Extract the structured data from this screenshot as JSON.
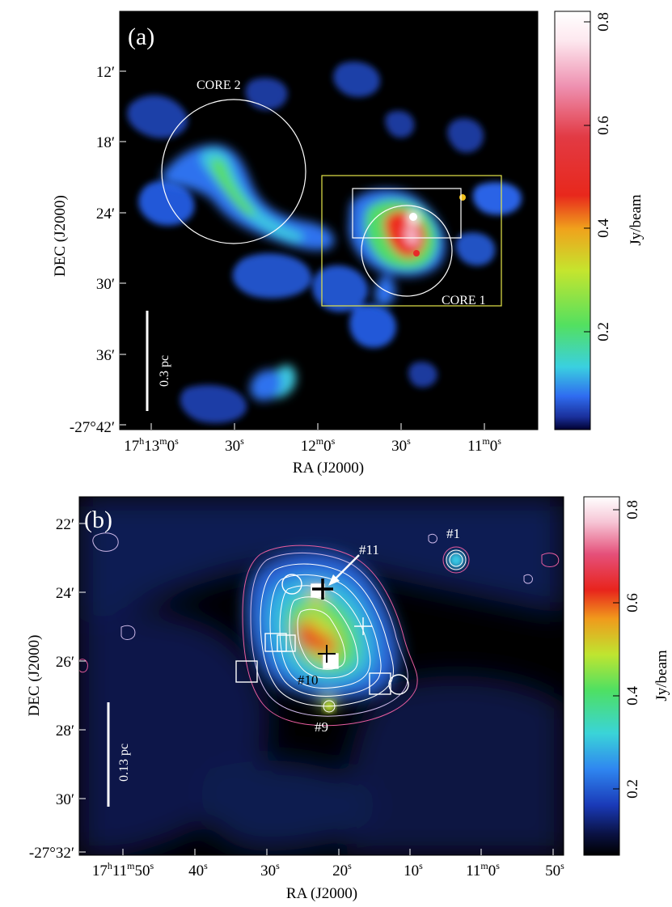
{
  "panel_a": {
    "label": "(a)",
    "y_axis_label": "DEC (J2000)",
    "x_axis_label": "RA (J2000)",
    "y_ticks": [
      {
        "main": "12′"
      },
      {
        "main": "18′"
      },
      {
        "main": "24′"
      },
      {
        "main": "30′"
      },
      {
        "main": "36′"
      },
      {
        "main": "-27°42′"
      }
    ],
    "x_ticks": [
      {
        "main": "17",
        "sup1": "h",
        "mid": "13",
        "sup2": "m",
        "tail": "0",
        "sup3": "s"
      },
      {
        "main": "30",
        "sup3": "s"
      },
      {
        "main": "12",
        "sup2": "m",
        "tail": "0",
        "sup3": "s"
      },
      {
        "main": "30",
        "sup3": "s"
      },
      {
        "main": "11",
        "sup2": "m",
        "tail": "0",
        "sup3": "s"
      }
    ],
    "core2_label": "CORE 2",
    "core1_label": "CORE 1",
    "scalebar_label": "0.3 pc",
    "colorbar_label": "Jy/beam",
    "colorbar_ticks": [
      "0.8",
      "0.6",
      "0.4",
      "0.2"
    ]
  },
  "panel_b": {
    "label": "(b)",
    "y_axis_label": "DEC (J2000)",
    "x_axis_label": "RA (J2000)",
    "y_ticks": [
      "22′",
      "24′",
      "26′",
      "28′",
      "30′",
      "-27°32′"
    ],
    "x_ticks": [
      {
        "main": "17",
        "sup1": "h",
        "mid": "11",
        "sup2": "m",
        "tail": "50",
        "sup3": "s"
      },
      {
        "main": "40",
        "sup3": "s"
      },
      {
        "main": "30",
        "sup3": "s"
      },
      {
        "main": "20",
        "sup3": "s"
      },
      {
        "main": "10",
        "sup3": "s"
      },
      {
        "main": "11",
        "sup2": "m",
        "tail": "0",
        "sup3": "s"
      },
      {
        "main": "50",
        "sup3": "s"
      }
    ],
    "source_labels": {
      "s1": "#1",
      "s11": "#11",
      "s10": "#10",
      "s9": "#9"
    },
    "scalebar_label": "0.13 pc",
    "colorbar_label": "Jy/beam",
    "colorbar_ticks": [
      "0.8",
      "0.6",
      "0.4",
      "0.2"
    ]
  },
  "colors": {
    "background": "#000000",
    "colormap": [
      "#000000",
      "#1b2f8a",
      "#2f6cf0",
      "#39c9e6",
      "#5fe05a",
      "#b8e832",
      "#f2c21e",
      "#f07a16",
      "#e8201c",
      "#e86a8a",
      "#f4c4d4",
      "#ffffff"
    ]
  }
}
